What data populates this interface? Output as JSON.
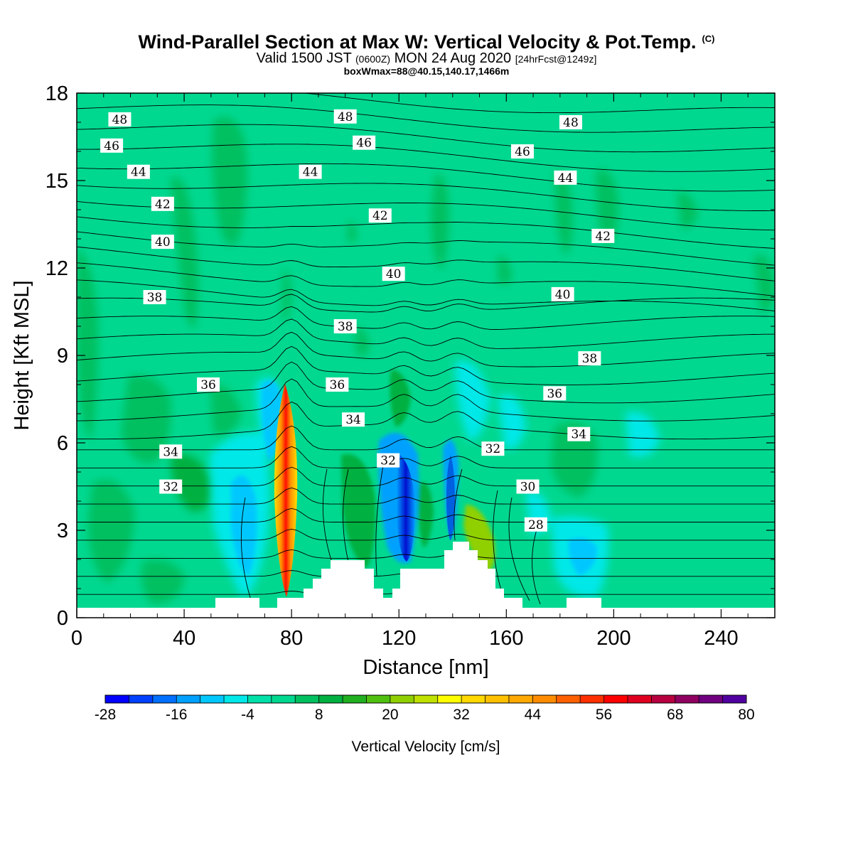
{
  "header": {
    "title": "Wind-Parallel Section at Max W: Vertical Velocity & Pot.Temp.",
    "title_mark": "(C)",
    "subtitle_a": "Valid 1500 JST",
    "subtitle_b": "(0600Z)",
    "subtitle_c": "MON 24 Aug 2020",
    "subtitle_d": "[24hrFcst@1249z]",
    "subtitle2": "boxWmax=88@40.15,140.17,1466m"
  },
  "chart_data": {
    "type": "heatmap",
    "xlabel": "Distance [nm]",
    "ylabel": "Height [Kft MSL]",
    "xlim": [
      0,
      260
    ],
    "ylim": [
      0,
      18
    ],
    "x_ticks": [
      "0",
      "40",
      "80",
      "120",
      "160",
      "200",
      "240"
    ],
    "x_tick_values": [
      0,
      40,
      80,
      120,
      160,
      200,
      240
    ],
    "y_ticks": [
      "0",
      "3",
      "6",
      "9",
      "12",
      "15",
      "18"
    ],
    "y_tick_values": [
      0,
      3,
      6,
      9,
      12,
      15,
      18
    ],
    "background_color": "#00d890",
    "colorbar": {
      "label": "Vertical Velocity [cm/s]",
      "tick_labels": [
        "-28",
        "-16",
        "-4",
        "8",
        "20",
        "32",
        "44",
        "56",
        "68",
        "80"
      ],
      "tick_values": [
        -28,
        -16,
        -4,
        8,
        20,
        32,
        44,
        56,
        68,
        80
      ],
      "min": -28,
      "max": 80,
      "step": 4,
      "colors": [
        "#0000ff",
        "#0040ff",
        "#0070ff",
        "#00a0ff",
        "#00c8ff",
        "#00e8e8",
        "#00e0a8",
        "#00d890",
        "#00c060",
        "#00b040",
        "#20b020",
        "#50c010",
        "#90d000",
        "#c0e000",
        "#ffff00",
        "#ffd800",
        "#ffc000",
        "#ffa800",
        "#ff8c00",
        "#ff6000",
        "#ff3000",
        "#ff0000",
        "#e00020",
        "#b80040",
        "#900060",
        "#700080",
        "#5000a0"
      ]
    },
    "theta_contour_labels": [
      {
        "text": "48",
        "x": 16,
        "y": 17.1
      },
      {
        "text": "48",
        "x": 100,
        "y": 17.2
      },
      {
        "text": "48",
        "x": 184,
        "y": 17.0
      },
      {
        "text": "46",
        "x": 13,
        "y": 16.2
      },
      {
        "text": "46",
        "x": 107,
        "y": 16.3
      },
      {
        "text": "46",
        "x": 166,
        "y": 16.0
      },
      {
        "text": "44",
        "x": 23,
        "y": 15.3
      },
      {
        "text": "44",
        "x": 87,
        "y": 15.3
      },
      {
        "text": "44",
        "x": 182,
        "y": 15.1
      },
      {
        "text": "42",
        "x": 32,
        "y": 14.2
      },
      {
        "text": "42",
        "x": 113,
        "y": 13.8
      },
      {
        "text": "42",
        "x": 196,
        "y": 13.1
      },
      {
        "text": "40",
        "x": 32,
        "y": 12.9
      },
      {
        "text": "40",
        "x": 118,
        "y": 11.8
      },
      {
        "text": "40",
        "x": 181,
        "y": 11.1
      },
      {
        "text": "38",
        "x": 29,
        "y": 11.0
      },
      {
        "text": "38",
        "x": 100,
        "y": 10.0
      },
      {
        "text": "38",
        "x": 191,
        "y": 8.9
      },
      {
        "text": "36",
        "x": 49,
        "y": 8.0
      },
      {
        "text": "36",
        "x": 97,
        "y": 8.0
      },
      {
        "text": "36",
        "x": 178,
        "y": 7.7
      },
      {
        "text": "34",
        "x": 35,
        "y": 5.7
      },
      {
        "text": "34",
        "x": 103,
        "y": 6.8
      },
      {
        "text": "34",
        "x": 187,
        "y": 6.3
      },
      {
        "text": "32",
        "x": 35,
        "y": 4.5
      },
      {
        "text": "32",
        "x": 116,
        "y": 5.4
      },
      {
        "text": "32",
        "x": 155,
        "y": 5.8
      },
      {
        "text": "30",
        "x": 168,
        "y": 4.5
      },
      {
        "text": "28",
        "x": 171,
        "y": 3.2
      }
    ]
  }
}
